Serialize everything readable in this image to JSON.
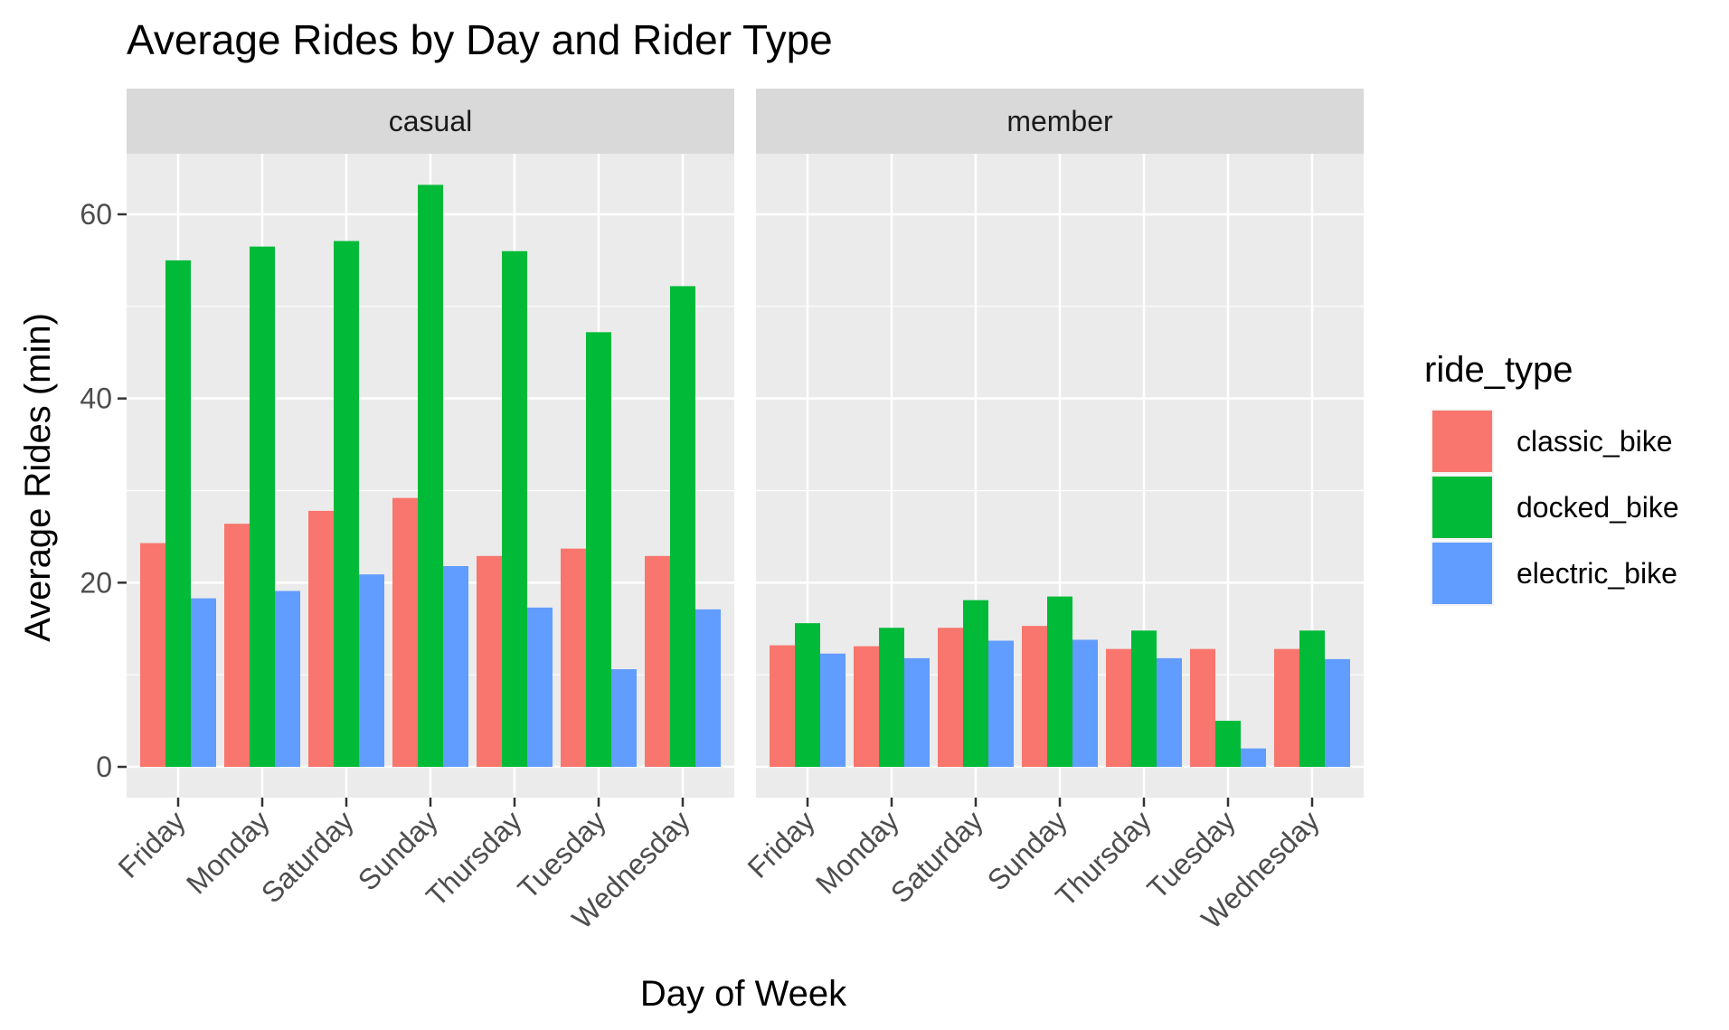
{
  "chart_data": {
    "type": "bar",
    "title": "Average Rides by Day and Rider Type",
    "xlabel": "Day of Week",
    "ylabel": "Average Rides (min)",
    "ylim": [
      0,
      70
    ],
    "yticks": [
      0,
      20,
      40,
      60
    ],
    "grid": true,
    "legend": {
      "title": "ride_type",
      "position": "right"
    },
    "categories": [
      "Friday",
      "Monday",
      "Saturday",
      "Sunday",
      "Thursday",
      "Tuesday",
      "Wednesday"
    ],
    "facets": [
      {
        "label": "casual",
        "series": [
          {
            "name": "classic_bike",
            "values": [
              24.3,
              26.4,
              27.8,
              29.2,
              22.9,
              23.7,
              22.9
            ]
          },
          {
            "name": "docked_bike",
            "values": [
              55.0,
              56.5,
              57.1,
              63.2,
              56.0,
              47.2,
              52.2
            ]
          },
          {
            "name": "electric_bike",
            "values": [
              18.3,
              19.1,
              20.9,
              21.8,
              17.3,
              10.6,
              17.1
            ]
          }
        ]
      },
      {
        "label": "member",
        "series": [
          {
            "name": "classic_bike",
            "values": [
              13.2,
              13.1,
              15.1,
              15.3,
              12.8,
              12.8,
              12.8
            ]
          },
          {
            "name": "docked_bike",
            "values": [
              15.6,
              15.1,
              18.1,
              18.5,
              14.8,
              5.0,
              14.8
            ]
          },
          {
            "name": "electric_bike",
            "values": [
              12.3,
              11.8,
              13.7,
              13.8,
              11.8,
              2.0,
              11.7
            ]
          }
        ]
      }
    ],
    "colors": {
      "classic_bike": "#F8766D",
      "docked_bike": "#00BA38",
      "electric_bike": "#619CFF",
      "panel_bg": "#EBEBEB",
      "strip_bg": "#D9D9D9",
      "grid": "#FFFFFF"
    }
  }
}
